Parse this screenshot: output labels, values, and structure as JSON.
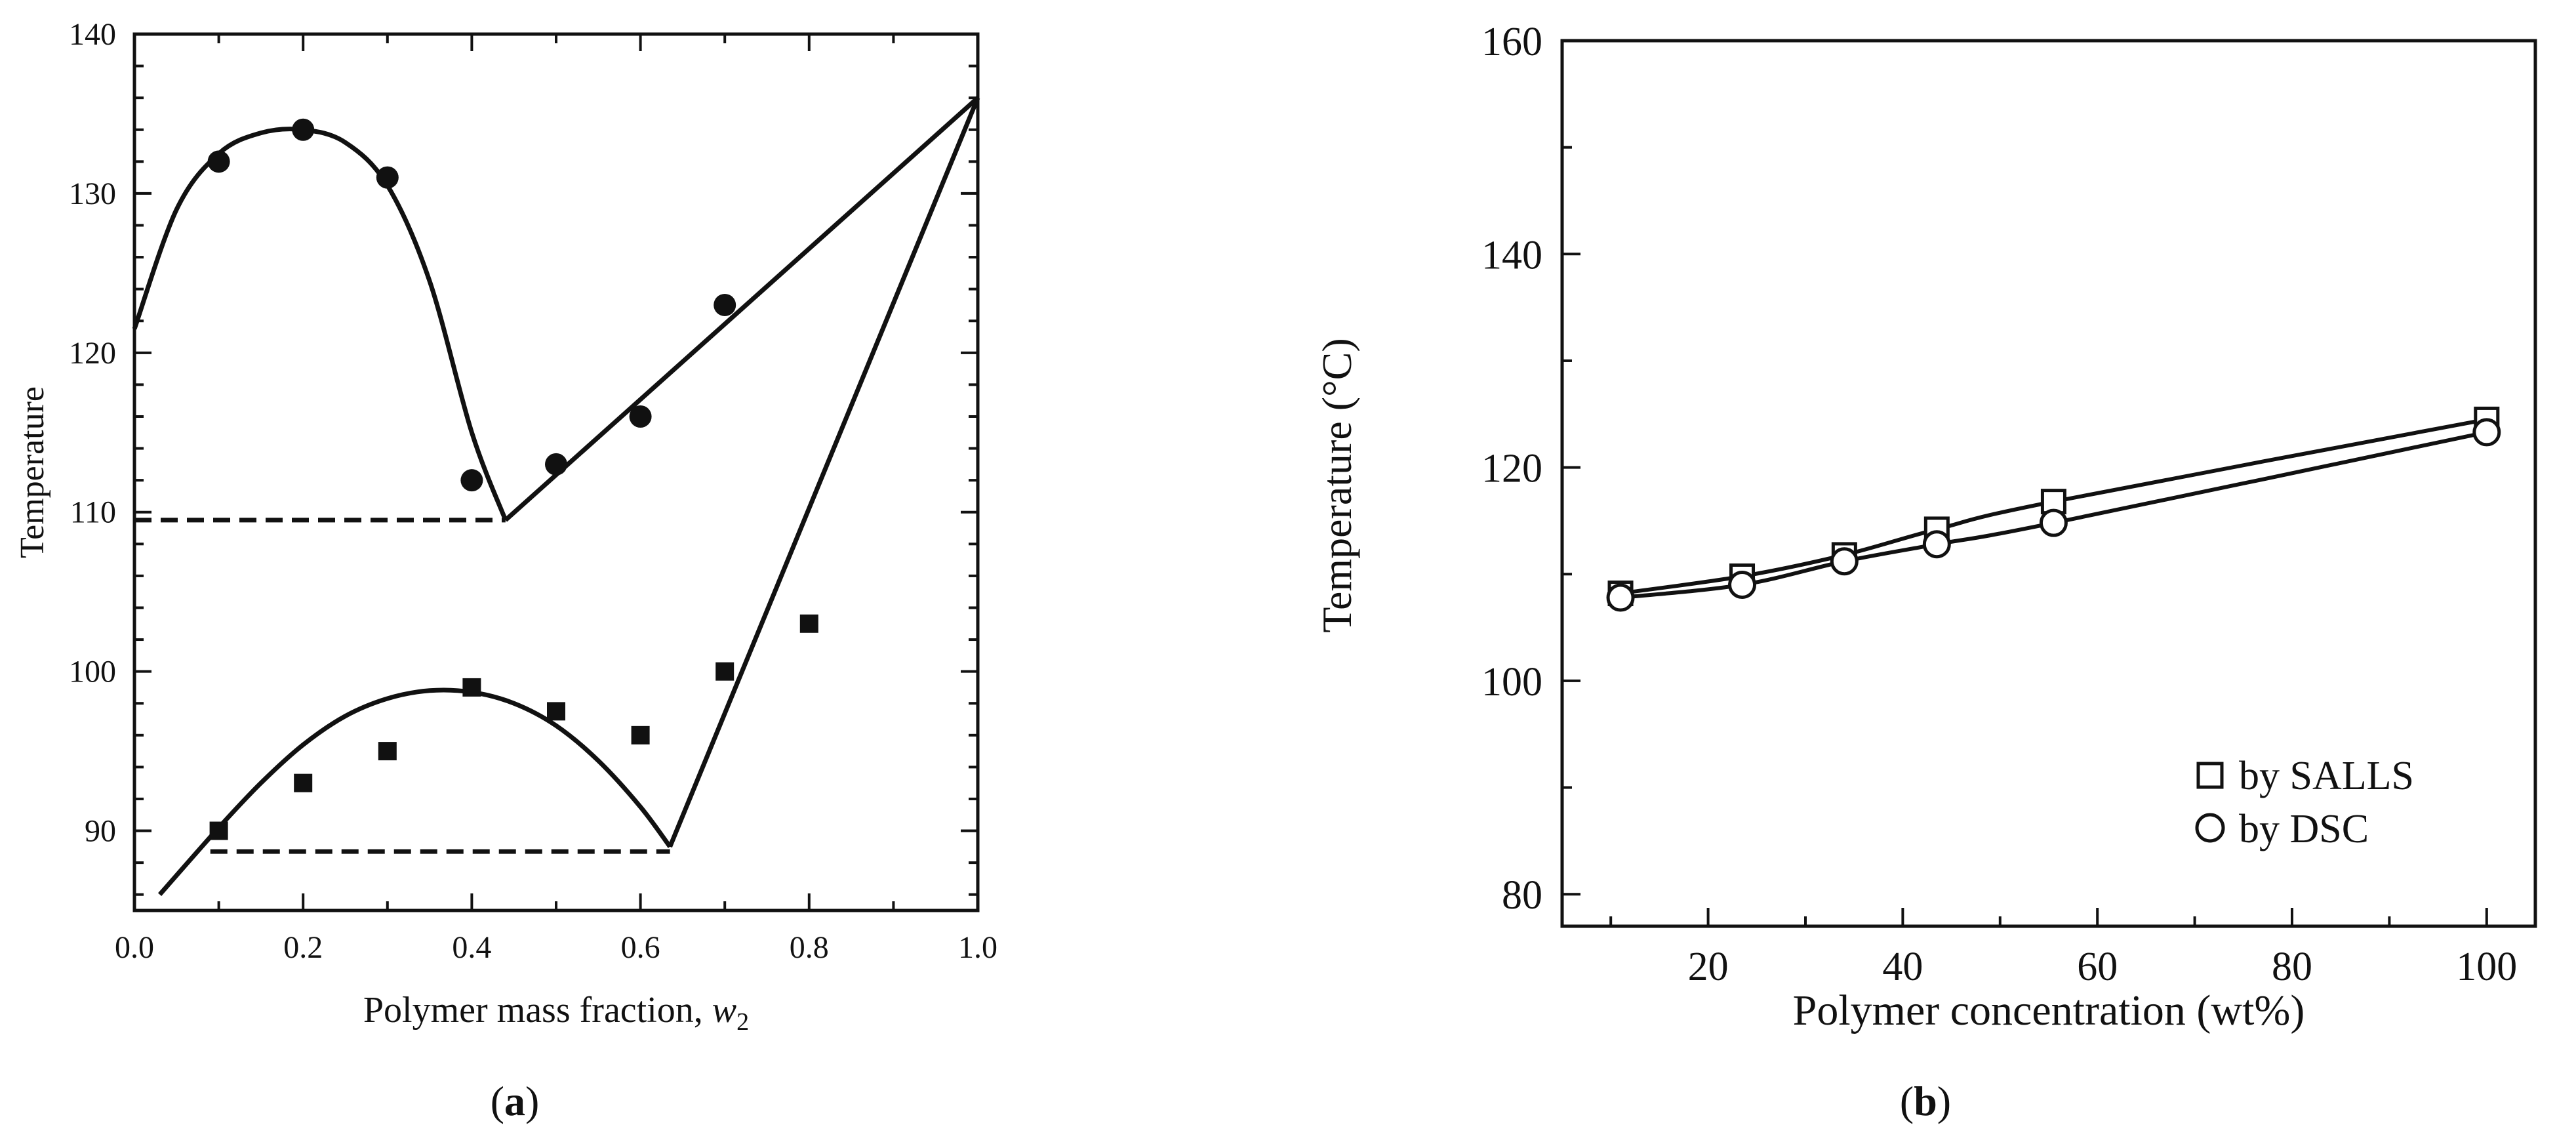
{
  "chart_data": [
    {
      "type": "scatter",
      "panel_label": "(a)",
      "panel_label_parts": {
        "open": "(",
        "letter": "a",
        "close": ")"
      },
      "title": "",
      "xlabel": "Polymer mass fraction, ",
      "xlabel_var": "w",
      "xlabel_sub": "2",
      "ylabel": "Temperature",
      "xlim": [
        0.0,
        1.0
      ],
      "ylim": [
        85,
        140
      ],
      "xticks": [
        "0.0",
        "0.2",
        "0.4",
        "0.6",
        "0.8",
        "1.0"
      ],
      "yticks": [
        "90",
        "100",
        "110",
        "120",
        "130",
        "140"
      ],
      "series": [
        {
          "name": "circles",
          "marker": "filled-circle",
          "x": [
            0.1,
            0.2,
            0.3,
            0.4,
            0.5,
            0.6,
            0.7
          ],
          "y": [
            132,
            134,
            131,
            112,
            113,
            116,
            123
          ]
        },
        {
          "name": "squares",
          "marker": "filled-square",
          "x": [
            0.1,
            0.2,
            0.3,
            0.4,
            0.5,
            0.6,
            0.7,
            0.8
          ],
          "y": [
            90,
            93,
            95,
            99,
            97.5,
            96,
            100,
            103
          ]
        },
        {
          "name": "upper-curve",
          "style": "solid",
          "x": [
            0.0,
            0.05,
            0.1,
            0.15,
            0.2,
            0.25,
            0.3,
            0.35,
            0.4,
            0.44
          ],
          "y": [
            121.5,
            129,
            132.5,
            133.8,
            134,
            133.2,
            130.5,
            124.5,
            115,
            109.5
          ]
        },
        {
          "name": "upper-liquidus",
          "style": "solid",
          "x": [
            0.44,
            1.0
          ],
          "y": [
            109.5,
            136
          ]
        },
        {
          "name": "upper-eutectic",
          "style": "dashed",
          "x": [
            0.0,
            0.44
          ],
          "y": [
            109.5,
            109.5
          ]
        },
        {
          "name": "lower-curve",
          "style": "solid",
          "x": [
            0.03,
            0.1,
            0.15,
            0.2,
            0.25,
            0.3,
            0.35,
            0.4,
            0.45,
            0.5,
            0.55,
            0.6,
            0.635
          ],
          "y": [
            86,
            90.2,
            93,
            95.4,
            97.2,
            98.3,
            98.8,
            98.7,
            98,
            96.6,
            94.4,
            91.5,
            89
          ]
        },
        {
          "name": "lower-liquidus",
          "style": "solid",
          "x": [
            0.635,
            1.0
          ],
          "y": [
            89,
            136
          ]
        },
        {
          "name": "lower-eutectic",
          "style": "dashed",
          "x": [
            0.09,
            0.635
          ],
          "y": [
            88.7,
            88.7
          ]
        }
      ]
    },
    {
      "type": "line",
      "panel_label": "(b)",
      "panel_label_parts": {
        "open": "(",
        "letter": "b",
        "close": ")"
      },
      "title": "",
      "xlabel": "Polymer concentration (wt%)",
      "ylabel": "Temperature (°C)",
      "xlim": [
        5,
        105
      ],
      "ylim": [
        77,
        160
      ],
      "xticks": [
        "20",
        "40",
        "60",
        "80",
        "100"
      ],
      "yticks": [
        "80",
        "100",
        "120",
        "140",
        "160"
      ],
      "legend_position": "bottom-right",
      "series": [
        {
          "name": "by SALLS",
          "marker": "open-square",
          "x": [
            11,
            23.5,
            34,
            43.5,
            55.5,
            100
          ],
          "y": [
            108.2,
            109.8,
            111.8,
            114.2,
            116.8,
            124.5
          ]
        },
        {
          "name": "by DSC",
          "marker": "open-circle",
          "x": [
            11,
            23.5,
            34,
            43.5,
            55.5,
            100
          ],
          "y": [
            107.8,
            109,
            111.2,
            112.8,
            114.8,
            123.3
          ]
        }
      ]
    }
  ]
}
